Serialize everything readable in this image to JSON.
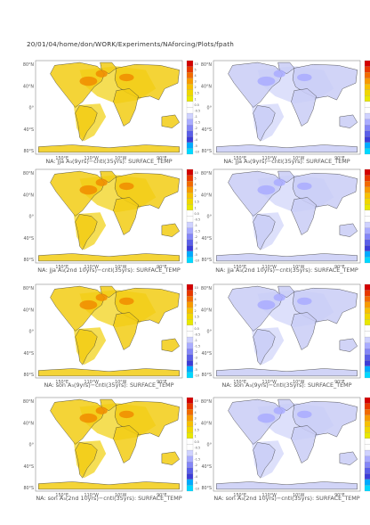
{
  "header": {
    "path": "20/01/04/home/don/WORK/Experiments/NAforcing/Plots/fpath"
  },
  "axes": {
    "lat_labels": [
      "80°N",
      "40°N",
      "0°",
      "40°S",
      "80°S"
    ],
    "lon_labels": [
      "150°E",
      "110°W",
      "10°W",
      "90°E"
    ]
  },
  "colorbar": {
    "colors": [
      "#d40000",
      "#e83800",
      "#f26a00",
      "#f79a00",
      "#f7c000",
      "#f0d700",
      "#e8e800",
      "#ffffff",
      "#ffffff",
      "#cfd2ff",
      "#a9acff",
      "#8486f7",
      "#5a5ee8",
      "#3c3cd8",
      "#00aaff",
      "#00d8ff"
    ],
    "labels": [
      "10",
      "5",
      "4",
      "3",
      "2",
      "1.5",
      "1",
      "0.5",
      "-0.5",
      "-1",
      "-1.5",
      "-2",
      "-3",
      "-4",
      "-5",
      "-10"
    ]
  },
  "panels": [
    {
      "id": "r1-left",
      "caption": "NA: jja A₃(9yrs)−cntl(35yrs): SURFACE_TEMP",
      "fill": "warm"
    },
    {
      "id": "r1-right",
      "caption": "NA: jja A₃(9yrs)−cntl(35yrs): SURFACE_TEMP",
      "fill": "cool"
    },
    {
      "id": "r2-left",
      "caption": "NA: jja A₃(2nd 10yrs)−cntl(35yrs): SURFACE_TEMP",
      "fill": "warm"
    },
    {
      "id": "r2-right",
      "caption": "NA: jja A₃(2nd 10yrs)−cntl(35yrs): SURFACE_TEMP",
      "fill": "cool"
    },
    {
      "id": "r3-left",
      "caption": "NA: son A₃(9yrs)−cntl(35yrs): SURFACE_TEMP",
      "fill": "warm"
    },
    {
      "id": "r3-right",
      "caption": "NA: son A₃(9yrs)−cntl(35yrs): SURFACE_TEMP",
      "fill": "cool"
    },
    {
      "id": "r4-left",
      "caption": "NA: son A₃(2nd 10yrs)−cntl(35yrs): SURFACE_TEMP",
      "fill": "warm"
    },
    {
      "id": "r4-right",
      "caption": "NA: son A₃(2nd 10yrs)−cntl(35yrs): SURFACE_TEMP",
      "fill": "cool"
    }
  ]
}
